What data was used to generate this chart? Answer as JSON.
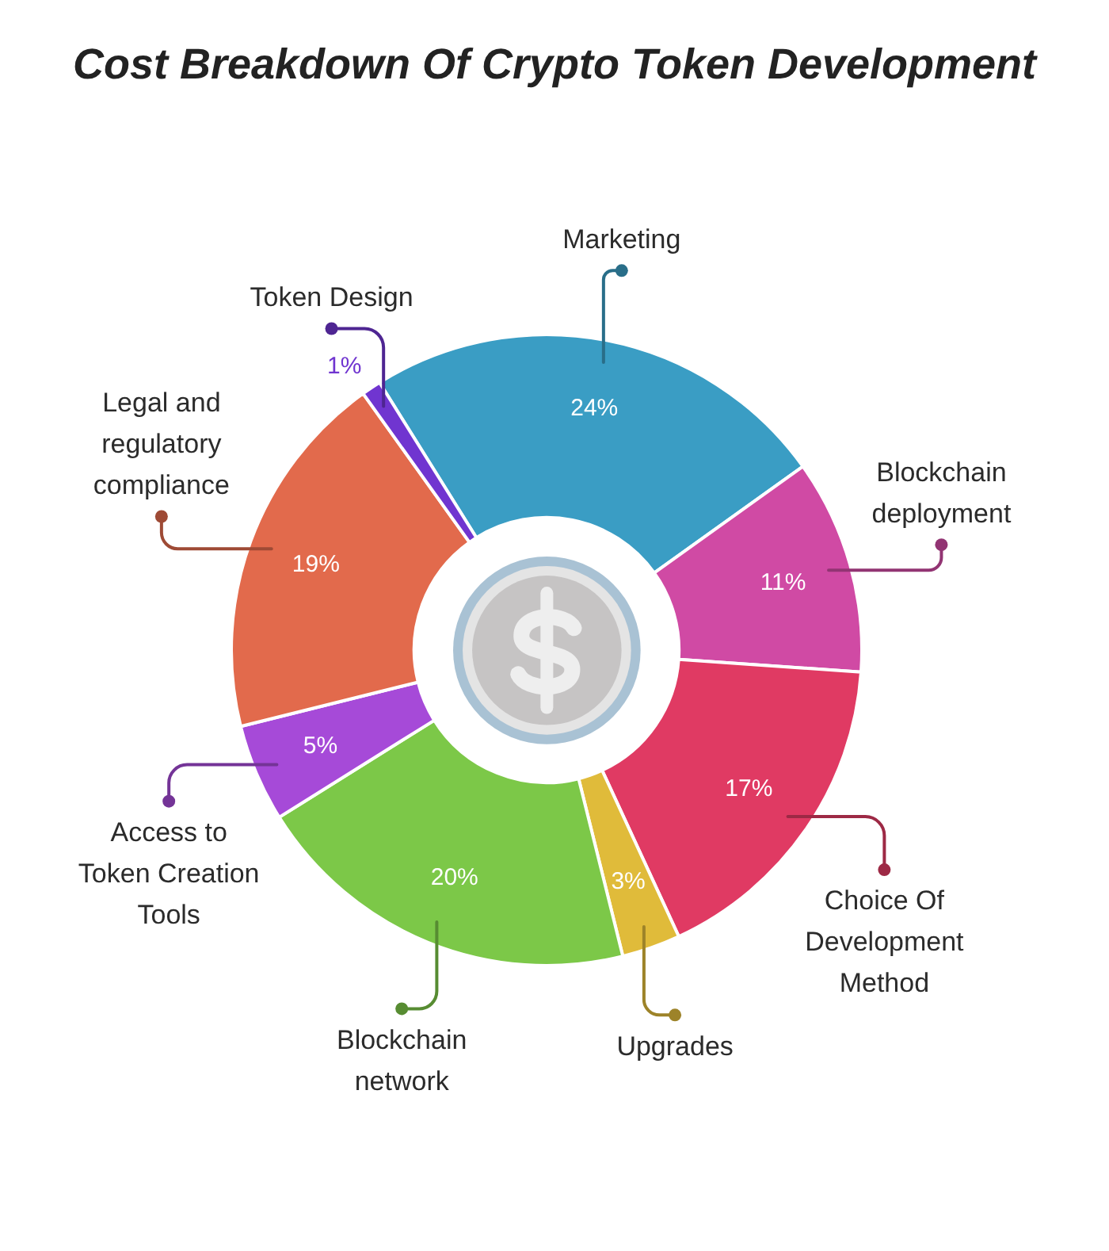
{
  "chart_data": {
    "type": "donut",
    "title": "Cost Breakdown Of Crypto Token Development",
    "categories": [
      "Marketing",
      "Blockchain deployment",
      "Choice Of Development Method",
      "Upgrades",
      "Blockchain network",
      "Access to Token Creation Tools",
      "Legal and regulatory compliance",
      "Token Design"
    ],
    "values": [
      24,
      11,
      17,
      3,
      20,
      5,
      19,
      1
    ],
    "colors": [
      "#3a9dc4",
      "#d04aa4",
      "#e03a63",
      "#e0bb3a",
      "#7cc848",
      "#a64ad8",
      "#e26a4c",
      "#7035d0"
    ],
    "value_labels": [
      "24%",
      "11%",
      "17%",
      "3%",
      "20%",
      "5%",
      "19%",
      "1%"
    ],
    "legend": false
  }
}
